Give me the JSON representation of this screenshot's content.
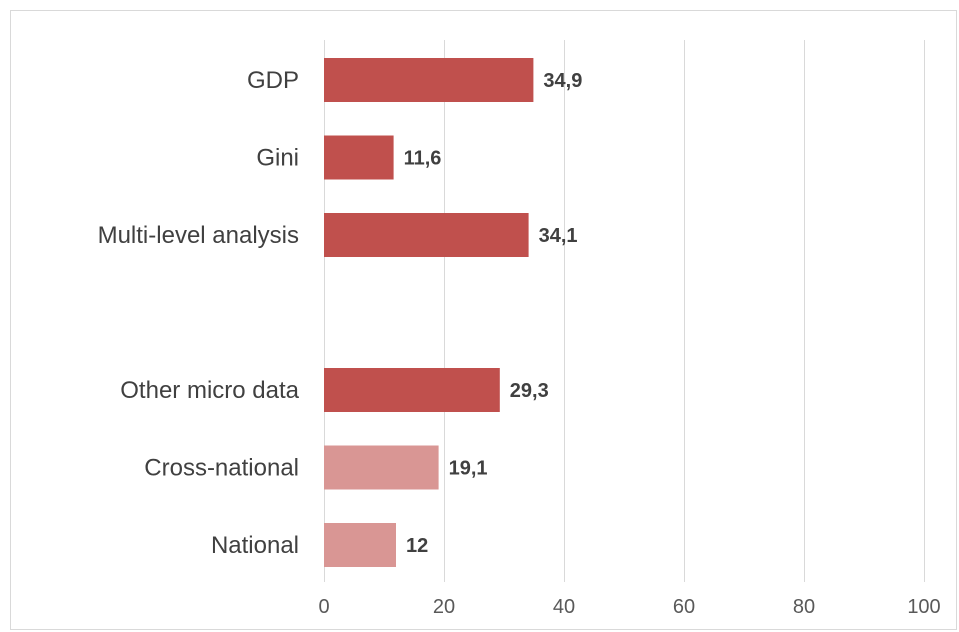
{
  "chart_data": {
    "type": "bar",
    "orientation": "horizontal",
    "title": "",
    "xlabel": "",
    "ylabel": "",
    "xlim": [
      0,
      100
    ],
    "x_ticks": [
      0,
      20,
      40,
      60,
      80,
      100
    ],
    "grid": true,
    "legend": "none",
    "categories": [
      "GDP",
      "Gini",
      "Multi-level analysis",
      "",
      "Other micro data",
      "Cross-national",
      "National"
    ],
    "values": [
      34.9,
      11.6,
      34.1,
      null,
      29.3,
      19.1,
      12
    ],
    "value_labels": [
      "34,9",
      "11,6",
      "34,1",
      "",
      "29,3",
      "19,1",
      "12"
    ],
    "colors": [
      "#c0504d",
      "#c0504d",
      "#c0504d",
      null,
      "#c0504d",
      "#d99694",
      "#d99694"
    ]
  }
}
